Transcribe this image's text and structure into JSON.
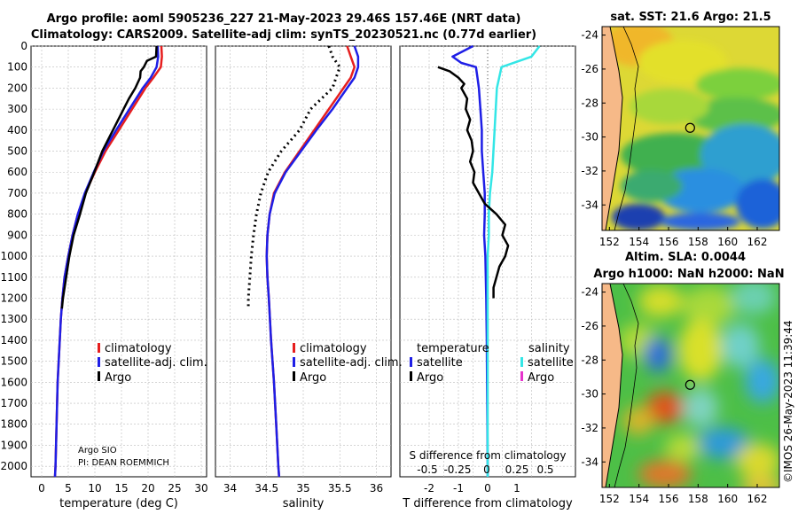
{
  "header": {
    "line1": "Argo profile: aoml 5905236_227 21-May-2023 29.46S 157.46E (NRT data)",
    "line2": "Climatology: CARS2009. Satellite-adj clim: synTS_20230521.nc (0.77d earlier)"
  },
  "colors": {
    "climatology": "#e61e1e",
    "satellite": "#1e1ee6",
    "argo": "#000000",
    "sal_sat": "#33e6e6",
    "sal_argo": "#e633cc"
  },
  "chart_data": [
    {
      "type": "line",
      "name": "temperature-profile",
      "xlabel": "temperature (deg C)",
      "xlim": [
        -2,
        31
      ],
      "xticks": [
        0,
        5,
        10,
        15,
        20,
        25,
        30
      ],
      "ylim": [
        0,
        2050
      ],
      "yticks": [
        0,
        100,
        200,
        300,
        400,
        500,
        600,
        700,
        800,
        900,
        1000,
        1100,
        1200,
        1300,
        1400,
        1500,
        1600,
        1700,
        1800,
        1900,
        2000
      ],
      "legend": [
        "climatology",
        "satellite-adj. clim.",
        "Argo"
      ],
      "credit1": "Argo SIO",
      "credit2": "PI: DEAN ROEMMICH",
      "series": [
        {
          "name": "climatology",
          "depth": [
            0,
            50,
            100,
            150,
            200,
            300,
            400,
            500,
            600,
            700,
            800,
            900,
            1000,
            1100,
            1200,
            1300,
            1400,
            1500,
            1600,
            1700,
            1800,
            1900,
            2000,
            2050
          ],
          "values": [
            22.5,
            22.6,
            22.4,
            21.0,
            19.5,
            17.0,
            14.5,
            12.0,
            10.0,
            8.2,
            6.8,
            5.8,
            5.0,
            4.3,
            3.9,
            3.6,
            3.4,
            3.2,
            3.0,
            2.9,
            2.8,
            2.7,
            2.6,
            2.5
          ]
        },
        {
          "name": "satellite",
          "depth": [
            0,
            50,
            100,
            150,
            200,
            300,
            400,
            500,
            600,
            700,
            800,
            900,
            1000,
            1100,
            1200,
            1300,
            1400,
            1500,
            1600,
            1700,
            1800,
            1900,
            2000,
            2050
          ],
          "values": [
            21.8,
            21.9,
            21.6,
            20.5,
            19.0,
            16.5,
            14.0,
            11.6,
            9.8,
            8.1,
            6.8,
            5.8,
            5.0,
            4.3,
            3.9,
            3.6,
            3.4,
            3.2,
            3.0,
            2.9,
            2.8,
            2.7,
            2.6,
            2.5
          ]
        },
        {
          "name": "argo",
          "depth": [
            0,
            50,
            70,
            100,
            120,
            150,
            200,
            250,
            300,
            350,
            400,
            500,
            600,
            700,
            800,
            900,
            1000,
            1100,
            1200,
            1250
          ],
          "values": [
            21.6,
            21.5,
            19.8,
            19.2,
            18.6,
            18.5,
            17.6,
            16.4,
            15.4,
            14.4,
            13.4,
            11.4,
            9.9,
            8.3,
            7.2,
            6.0,
            5.2,
            4.6,
            4.0,
            3.8
          ]
        }
      ]
    },
    {
      "type": "line",
      "name": "salinity-profile",
      "xlabel": "salinity",
      "xlim": [
        33.8,
        36.2
      ],
      "xticks": [
        34,
        34.5,
        35,
        35.5,
        36
      ],
      "ylim": [
        0,
        2050
      ],
      "legend": [
        "climatology",
        "satellite-adj. clim.",
        "Argo"
      ],
      "series": [
        {
          "name": "climatology",
          "depth": [
            0,
            50,
            100,
            150,
            200,
            300,
            400,
            500,
            600,
            700,
            800,
            900,
            1000,
            1100,
            1200,
            1400,
            1600,
            1800,
            2000,
            2050
          ],
          "values": [
            35.6,
            35.65,
            35.7,
            35.65,
            35.55,
            35.35,
            35.15,
            34.95,
            34.75,
            34.6,
            34.54,
            34.51,
            34.5,
            34.51,
            34.53,
            34.56,
            34.6,
            34.63,
            34.66,
            34.67
          ]
        },
        {
          "name": "satellite",
          "depth": [
            0,
            50,
            100,
            150,
            200,
            300,
            400,
            500,
            600,
            700,
            800,
            900,
            1000,
            1100,
            1200,
            1400,
            1600,
            1800,
            2000,
            2050
          ],
          "values": [
            35.7,
            35.75,
            35.75,
            35.7,
            35.6,
            35.4,
            35.18,
            34.97,
            34.76,
            34.61,
            34.54,
            34.51,
            34.5,
            34.51,
            34.53,
            34.56,
            34.6,
            34.63,
            34.66,
            34.67
          ]
        },
        {
          "name": "argo",
          "depth": [
            0,
            50,
            100,
            200,
            300,
            400,
            500,
            600,
            700,
            800,
            900,
            1000,
            1100,
            1200,
            1240
          ],
          "values": [
            35.35,
            35.4,
            35.5,
            35.4,
            35.1,
            34.95,
            34.7,
            34.52,
            34.42,
            34.36,
            34.32,
            34.29,
            34.27,
            34.25,
            34.25
          ]
        }
      ]
    },
    {
      "type": "line",
      "name": "difference-profile",
      "xlabel": "T difference from climatology",
      "xlim": [
        -3,
        3
      ],
      "xticks": [
        -2,
        -1.5,
        -1,
        -0.5,
        0,
        0.5,
        1,
        1.5,
        2
      ],
      "xtick_labels": [
        "-2",
        "",
        "-1",
        "",
        "0",
        "",
        "1",
        "",
        ""
      ],
      "top_label": "S difference from climatology",
      "top_ticks": [
        "-0.5",
        "-0.25",
        "0",
        "0.25",
        "0.5"
      ],
      "ylim": [
        0,
        2050
      ],
      "legend_temperature": "temperature",
      "legend_salinity": "salinity",
      "legend_t_items": [
        "satellite",
        "Argo"
      ],
      "legend_s_items": [
        "satellite",
        "Argo"
      ],
      "series": [
        {
          "name": "T satellite",
          "depth": [
            0,
            50,
            80,
            100,
            150,
            200,
            300,
            400,
            500,
            600,
            700,
            800,
            900,
            1000,
            1200,
            1400,
            1600,
            1800,
            2000,
            2050
          ],
          "values": [
            -0.5,
            -1.2,
            -0.9,
            -0.4,
            -0.35,
            -0.3,
            -0.25,
            -0.2,
            -0.2,
            -0.15,
            -0.1,
            -0.1,
            -0.12,
            -0.08,
            -0.05,
            -0.03,
            -0.02,
            -0.01,
            0,
            0
          ]
        },
        {
          "name": "S satellite",
          "depth": [
            0,
            50,
            100,
            200,
            300,
            400,
            500,
            600,
            700,
            800,
            900,
            1000,
            1200,
            1400,
            1600,
            1800,
            2000,
            2050
          ],
          "values": [
            0.45,
            0.38,
            0.12,
            0.08,
            0.07,
            0.06,
            0.05,
            0.04,
            0.02,
            0.01,
            0.01,
            0.0,
            0.0,
            0.0,
            0.0,
            0.0,
            0.0,
            0.0
          ]
        },
        {
          "name": "T Argo",
          "depth": [
            100,
            120,
            150,
            180,
            200,
            250,
            300,
            350,
            400,
            450,
            500,
            550,
            600,
            650,
            700,
            750,
            800,
            850,
            900,
            950,
            1000,
            1050,
            1100,
            1150,
            1200
          ],
          "values": [
            -1.7,
            -1.3,
            -1.0,
            -0.8,
            -0.9,
            -0.7,
            -0.75,
            -0.6,
            -0.7,
            -0.55,
            -0.5,
            -0.6,
            -0.45,
            -0.5,
            -0.3,
            -0.1,
            0.3,
            0.6,
            0.5,
            0.7,
            0.6,
            0.4,
            0.3,
            0.2,
            0.2
          ]
        }
      ]
    },
    {
      "type": "heatmap",
      "name": "sst-map",
      "title": "sat. SST: 21.6 Argo: 21.5",
      "xticks": [
        "152",
        "154",
        "156",
        "158",
        "160",
        "162"
      ],
      "yticks": [
        "-24",
        "-26",
        "-28",
        "-30",
        "-32",
        "-34"
      ],
      "xlim": [
        151.5,
        163.5
      ],
      "ylim": [
        -35.5,
        -23.5
      ],
      "float_lon": 157.46,
      "float_lat": -29.46
    },
    {
      "type": "heatmap",
      "name": "sla-map",
      "title1": "Altim. SLA: 0.0044",
      "title2": "Argo h1000: NaN h2000: NaN",
      "xticks": [
        "152",
        "154",
        "156",
        "158",
        "160",
        "162"
      ],
      "yticks": [
        "-24",
        "-26",
        "-28",
        "-30",
        "-32",
        "-34"
      ],
      "xlim": [
        151.5,
        163.5
      ],
      "ylim": [
        -35.5,
        -23.5
      ],
      "float_lon": 157.46,
      "float_lat": -29.46
    }
  ],
  "watermark": "©IMOS 26-May-2023 11:39:44"
}
